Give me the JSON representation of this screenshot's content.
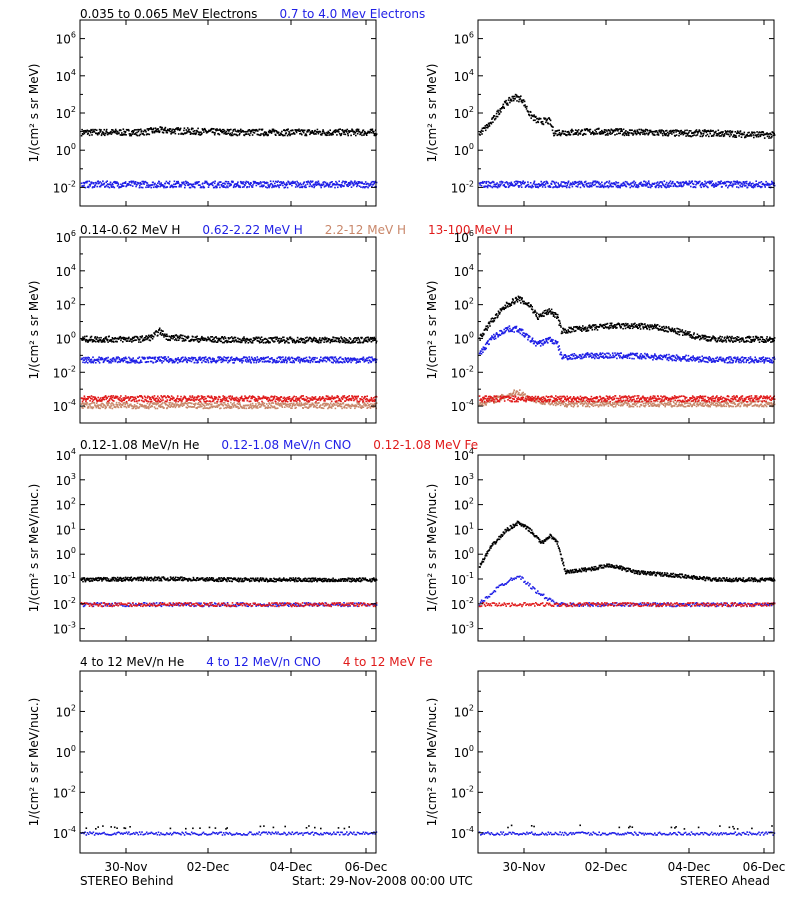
{
  "colors": {
    "black": "#000000",
    "blue": "#1f1fe6",
    "tan": "#c9876a",
    "red": "#e01a1a"
  },
  "rows": [
    {
      "title_items": [
        {
          "text": "0.035 to 0.065 MeV Electrons",
          "color": "black"
        },
        {
          "text": "0.7 to 4.0 Mev Electrons",
          "color": "blue"
        }
      ],
      "ylabel": "1/(cm² s sr MeV)",
      "log_range": [
        -3,
        7
      ],
      "tick_exponents": [
        -2,
        0,
        2,
        4,
        6
      ]
    },
    {
      "title_items": [
        {
          "text": "0.14-0.62 MeV H",
          "color": "black"
        },
        {
          "text": "0.62-2.22 MeV H",
          "color": "blue"
        },
        {
          "text": "2.2-12 MeV H",
          "color": "tan"
        },
        {
          "text": "13-100 MeV H",
          "color": "red"
        }
      ],
      "ylabel": "1/(cm² s sr MeV)",
      "log_range": [
        -5,
        6
      ],
      "tick_exponents": [
        -4,
        -2,
        0,
        2,
        4,
        6
      ]
    },
    {
      "title_items": [
        {
          "text": "0.12-1.08 MeV/n He",
          "color": "black"
        },
        {
          "text": "0.12-1.08 MeV/n CNO",
          "color": "blue"
        },
        {
          "text": "0.12-1.08 MeV Fe",
          "color": "red"
        }
      ],
      "ylabel": "1/(cm² s sr MeV/nuc.)",
      "log_range": [
        -3.5,
        4
      ],
      "tick_exponents": [
        -3,
        -2,
        -1,
        0,
        1,
        2,
        3,
        4
      ]
    },
    {
      "title_items": [
        {
          "text": "4 to 12 MeV/n He",
          "color": "black"
        },
        {
          "text": "4 to 12 MeV/n CNO",
          "color": "blue"
        },
        {
          "text": "4 to 12 MeV Fe",
          "color": "red"
        }
      ],
      "ylabel": "1/(cm² s sr MeV/nuc.)",
      "log_range": [
        -5,
        4
      ],
      "tick_exponents": [
        -4,
        -2,
        0,
        2
      ]
    }
  ],
  "x_ticks": [
    "30-Nov",
    "02-Dec",
    "04-Dec",
    "06-Dec"
  ],
  "footer": {
    "left": "STEREO Behind",
    "center": "Start: 29-Nov-2008 00:00 UTC",
    "right": "STEREO Ahead"
  },
  "chart_data": [
    {
      "type": "scatter",
      "panel": "STEREO Behind electrons",
      "x_range_days": [
        0,
        7.5
      ],
      "y_scale": "log",
      "series": [
        {
          "name": "0.035 to 0.065 MeV Electrons",
          "color": "black",
          "x_days": [
            0,
            1.5,
            2,
            3,
            4,
            5,
            6,
            7.5
          ],
          "y": [
            10.0,
            10.0,
            13.0,
            11.0,
            10.0,
            10.0,
            10.0,
            10.0
          ]
        },
        {
          "name": "0.7 to 4.0 Mev Electrons",
          "color": "blue",
          "x_days": [
            0,
            2,
            4,
            6,
            7.5
          ],
          "y": [
            0.016,
            0.016,
            0.016,
            0.016,
            0.016
          ]
        }
      ]
    },
    {
      "type": "scatter",
      "panel": "STEREO Ahead electrons",
      "x_range_days": [
        0,
        7.5
      ],
      "y_scale": "log",
      "series": [
        {
          "name": "0.035 to 0.065 MeV Electrons",
          "color": "black",
          "x_days": [
            0,
            0.3,
            0.6,
            0.9,
            1.1,
            1.3,
            1.5,
            1.8,
            1.9,
            2.3,
            3,
            4,
            5,
            6,
            7.5
          ],
          "y": [
            8.0,
            30.0,
            250.0,
            800.0,
            600.0,
            90.0,
            40.0,
            40.0,
            10.0,
            10.0,
            11.0,
            10.0,
            9.0,
            9.0,
            7.0
          ]
        },
        {
          "name": "0.7 to 4.0 Mev Electrons",
          "color": "blue",
          "x_days": [
            0,
            2,
            4,
            6,
            7.5
          ],
          "y": [
            0.016,
            0.016,
            0.016,
            0.016,
            0.016
          ]
        }
      ]
    },
    {
      "type": "scatter",
      "panel": "STEREO Behind protons",
      "x_range_days": [
        0,
        7.5
      ],
      "y_scale": "log",
      "series": [
        {
          "name": "0.14-0.62 MeV H",
          "color": "black",
          "x_days": [
            0,
            1.5,
            1.8,
            2,
            2.2,
            2.5,
            3,
            4,
            5,
            6,
            7.5
          ],
          "y": [
            1.0,
            1.0,
            1.3,
            3.0,
            1.3,
            1.2,
            1.0,
            0.9,
            0.9,
            0.9,
            0.9
          ]
        },
        {
          "name": "0.62-2.22 MeV H",
          "color": "blue",
          "x_days": [
            0,
            2,
            4,
            6,
            7.5
          ],
          "y": [
            0.06,
            0.06,
            0.06,
            0.06,
            0.06
          ]
        },
        {
          "name": "2.2-12 MeV H",
          "color": "tan",
          "x_days": [
            0,
            2,
            4,
            6,
            7.5
          ],
          "y": [
            0.00012,
            0.00012,
            0.00012,
            0.00012,
            0.00012
          ]
        },
        {
          "name": "13-100 MeV H",
          "color": "red",
          "x_days": [
            0,
            2,
            4,
            6,
            7.5
          ],
          "y": [
            0.0003,
            0.0003,
            0.0003,
            0.0003,
            0.0003
          ]
        }
      ]
    },
    {
      "type": "scatter",
      "panel": "STEREO Ahead protons",
      "x_range_days": [
        0,
        7.5
      ],
      "y_scale": "log",
      "series": [
        {
          "name": "0.14-0.62 MeV H",
          "color": "black",
          "x_days": [
            0,
            0.3,
            0.7,
            1.0,
            1.3,
            1.5,
            1.8,
            2.0,
            2.1,
            2.5,
            3.0,
            3.3,
            4.0,
            4.5,
            5.0,
            5.5,
            6.0,
            7.5
          ],
          "y": [
            1.0,
            10.0,
            100.0,
            250.0,
            100.0,
            20.0,
            50.0,
            20.0,
            3.0,
            4.0,
            5.0,
            6.0,
            6.0,
            5.0,
            3.0,
            1.5,
            1.0,
            1.0
          ]
        },
        {
          "name": "0.62-2.22 MeV H",
          "color": "blue",
          "x_days": [
            0,
            0.3,
            0.7,
            1.0,
            1.3,
            1.5,
            1.8,
            2.0,
            2.1,
            3.0,
            4.0,
            5.0,
            6.0,
            7.5
          ],
          "y": [
            0.1,
            1.0,
            4.0,
            4.0,
            1.0,
            0.5,
            1.0,
            0.5,
            0.09,
            0.11,
            0.1,
            0.08,
            0.06,
            0.06
          ]
        },
        {
          "name": "2.2-12 MeV H",
          "color": "tan",
          "x_days": [
            0,
            0.5,
            1.0,
            1.3,
            2,
            4,
            7.5
          ],
          "y": [
            0.00015,
            0.0003,
            0.0008,
            0.0003,
            0.00015,
            0.00015,
            0.00015
          ]
        },
        {
          "name": "13-100 MeV H",
          "color": "red",
          "x_days": [
            0,
            2,
            4,
            6,
            7.5
          ],
          "y": [
            0.0003,
            0.0003,
            0.0003,
            0.0003,
            0.0003
          ]
        }
      ]
    },
    {
      "type": "scatter",
      "panel": "STEREO Behind 0.12-1.08 MeV/n heavy ions",
      "x_range_days": [
        0,
        7.5
      ],
      "y_scale": "log",
      "series": [
        {
          "name": "0.12-1.08 MeV/n He",
          "color": "black",
          "x_days": [
            0,
            2,
            4,
            6,
            7.5
          ],
          "y": [
            0.1,
            0.11,
            0.1,
            0.1,
            0.1
          ]
        },
        {
          "name": "0.12-1.08 MeV/n CNO",
          "color": "blue",
          "x_days": [
            0,
            2,
            4,
            6,
            7.5
          ],
          "y": [
            0.01,
            0.01,
            0.01,
            0.01,
            0.01
          ]
        },
        {
          "name": "0.12-1.08 MeV Fe",
          "color": "red",
          "x_days": [
            0,
            2,
            4,
            6,
            7.5
          ],
          "y": [
            0.01,
            0.01,
            0.01,
            0.01,
            0.01
          ]
        }
      ]
    },
    {
      "type": "scatter",
      "panel": "STEREO Ahead 0.12-1.08 MeV/n heavy ions",
      "x_range_days": [
        0,
        7.5
      ],
      "y_scale": "log",
      "series": [
        {
          "name": "0.12-1.08 MeV/n He",
          "color": "black",
          "x_days": [
            0,
            0.3,
            0.7,
            1.0,
            1.3,
            1.6,
            1.8,
            2.0,
            2.2,
            3.0,
            3.3,
            4.0,
            5.0,
            6.0,
            7.5
          ],
          "y": [
            0.3,
            2.0,
            10.0,
            20.0,
            10.0,
            3.0,
            6.0,
            3.0,
            0.2,
            0.3,
            0.4,
            0.2,
            0.15,
            0.1,
            0.1
          ]
        },
        {
          "name": "0.12-1.08 MeV/n CNO",
          "color": "blue",
          "x_days": [
            0,
            0.5,
            0.8,
            1.0,
            1.5,
            2,
            4,
            7.5
          ],
          "y": [
            0.01,
            0.05,
            0.1,
            0.15,
            0.03,
            0.01,
            0.01,
            0.01
          ]
        },
        {
          "name": "0.12-1.08 MeV Fe",
          "color": "red",
          "x_days": [
            0,
            2,
            4,
            6,
            7.5
          ],
          "y": [
            0.01,
            0.01,
            0.01,
            0.01,
            0.01
          ]
        }
      ]
    },
    {
      "type": "scatter",
      "panel": "STEREO Behind 4 to 12 MeV/n heavy ions",
      "x_range_days": [
        0,
        7.5
      ],
      "y_scale": "log",
      "series": [
        {
          "name": "4 to 12 MeV/n He",
          "color": "black",
          "x_days": [
            0,
            2,
            4,
            6,
            7.5
          ],
          "y": [
            0.0002,
            0.0002,
            0.0002,
            0.0002,
            0.0002
          ]
        },
        {
          "name": "4 to 12 MeV/n CNO",
          "color": "blue",
          "x_days": [
            0,
            2,
            4,
            6,
            7.5
          ],
          "y": [
            0.0001,
            0.0001,
            0.0001,
            0.0001,
            0.0001
          ]
        }
      ]
    },
    {
      "type": "scatter",
      "panel": "STEREO Ahead 4 to 12 MeV/n heavy ions",
      "x_range_days": [
        0,
        7.5
      ],
      "y_scale": "log",
      "series": [
        {
          "name": "4 to 12 MeV/n He",
          "color": "black",
          "x_days": [
            0,
            2,
            4,
            6,
            7.5
          ],
          "y": [
            0.0002,
            0.0003,
            0.0002,
            0.0002,
            0.0002
          ]
        },
        {
          "name": "4 to 12 MeV/n CNO",
          "color": "blue",
          "x_days": [
            0,
            2,
            4,
            6,
            7.5
          ],
          "y": [
            0.0001,
            0.0001,
            0.0001,
            0.0001,
            0.0001
          ]
        }
      ]
    }
  ]
}
